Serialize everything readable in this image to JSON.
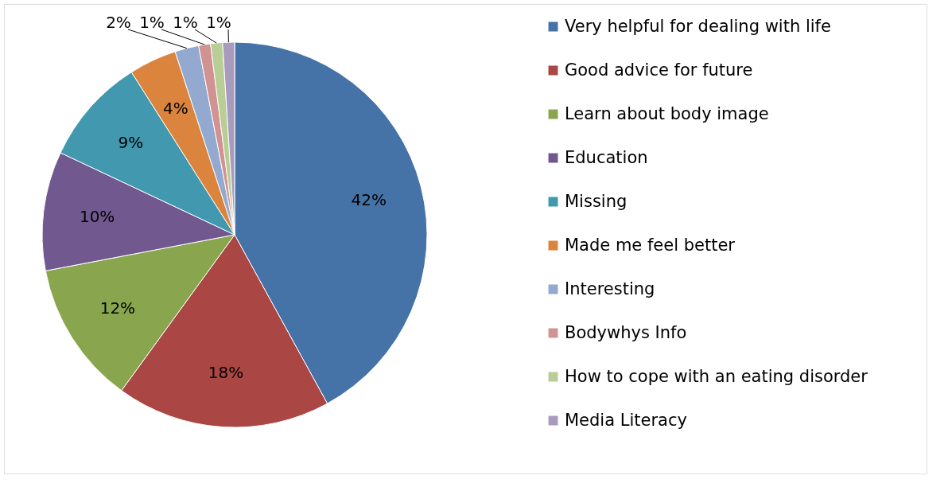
{
  "chart_data": {
    "type": "pie",
    "categories": [
      "Very helpful for dealing with life",
      "Good advice for future",
      "Learn about body image",
      "Education",
      "Missing",
      "Made me feel better",
      "Interesting",
      "Bodywhys Info",
      "How to cope with an eating disorder",
      "Media Literacy"
    ],
    "values": [
      42,
      18,
      12,
      10,
      9,
      4,
      2,
      1,
      1,
      1
    ],
    "colors": [
      "#4572a7",
      "#aa4643",
      "#89a54e",
      "#71588f",
      "#4198af",
      "#db843d",
      "#93a9cf",
      "#d19392",
      "#b9cd96",
      "#a99bbd"
    ],
    "value_labels": [
      "42%",
      "18%",
      "12%",
      "10%",
      "9%",
      "4%",
      "2%",
      "1%",
      "1%",
      "1%"
    ],
    "legend": "right"
  }
}
